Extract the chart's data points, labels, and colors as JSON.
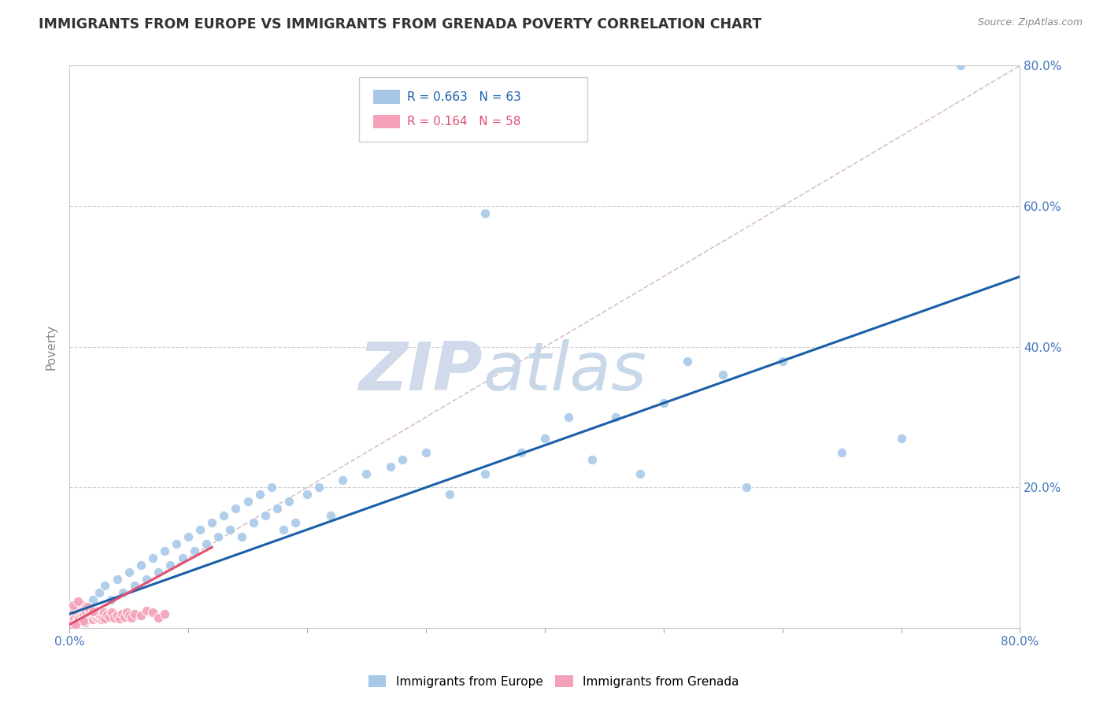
{
  "title": "IMMIGRANTS FROM EUROPE VS IMMIGRANTS FROM GRENADA POVERTY CORRELATION CHART",
  "source": "Source: ZipAtlas.com",
  "ylabel": "Poverty",
  "watermark_zip": "ZIP",
  "watermark_atlas": "atlas",
  "europe_color": "#a8c8e8",
  "grenada_color": "#f4a0b8",
  "europe_line_color": "#1a5fa8",
  "grenada_line_color": "#e05070",
  "diag_color": "#d8c0c8",
  "background_color": "#ffffff",
  "title_color": "#333333",
  "title_fontsize": 12.5,
  "watermark_color": "#d0daea",
  "axis_color": "#888888",
  "tick_color": "#4477bb",
  "europe_line_x": [
    0.0,
    0.8
  ],
  "europe_line_y": [
    0.02,
    0.5
  ],
  "grenada_line_x": [
    0.0,
    0.12
  ],
  "grenada_line_y": [
    0.005,
    0.115
  ],
  "xlim": [
    0.0,
    0.8
  ],
  "ylim": [
    0.0,
    0.8
  ],
  "europe_scatter": [
    [
      0.005,
      0.025
    ],
    [
      0.01,
      0.02
    ],
    [
      0.015,
      0.03
    ],
    [
      0.02,
      0.04
    ],
    [
      0.025,
      0.05
    ],
    [
      0.03,
      0.06
    ],
    [
      0.035,
      0.04
    ],
    [
      0.04,
      0.07
    ],
    [
      0.045,
      0.05
    ],
    [
      0.05,
      0.08
    ],
    [
      0.055,
      0.06
    ],
    [
      0.06,
      0.09
    ],
    [
      0.065,
      0.07
    ],
    [
      0.07,
      0.1
    ],
    [
      0.075,
      0.08
    ],
    [
      0.08,
      0.11
    ],
    [
      0.085,
      0.09
    ],
    [
      0.09,
      0.12
    ],
    [
      0.095,
      0.1
    ],
    [
      0.1,
      0.13
    ],
    [
      0.105,
      0.11
    ],
    [
      0.11,
      0.14
    ],
    [
      0.115,
      0.12
    ],
    [
      0.12,
      0.15
    ],
    [
      0.125,
      0.13
    ],
    [
      0.13,
      0.16
    ],
    [
      0.135,
      0.14
    ],
    [
      0.14,
      0.17
    ],
    [
      0.145,
      0.13
    ],
    [
      0.15,
      0.18
    ],
    [
      0.155,
      0.15
    ],
    [
      0.16,
      0.19
    ],
    [
      0.165,
      0.16
    ],
    [
      0.17,
      0.2
    ],
    [
      0.175,
      0.17
    ],
    [
      0.18,
      0.14
    ],
    [
      0.185,
      0.18
    ],
    [
      0.19,
      0.15
    ],
    [
      0.2,
      0.19
    ],
    [
      0.21,
      0.2
    ],
    [
      0.22,
      0.16
    ],
    [
      0.23,
      0.21
    ],
    [
      0.25,
      0.22
    ],
    [
      0.27,
      0.23
    ],
    [
      0.28,
      0.24
    ],
    [
      0.3,
      0.25
    ],
    [
      0.32,
      0.19
    ],
    [
      0.35,
      0.22
    ],
    [
      0.38,
      0.25
    ],
    [
      0.4,
      0.27
    ],
    [
      0.42,
      0.3
    ],
    [
      0.44,
      0.24
    ],
    [
      0.46,
      0.3
    ],
    [
      0.48,
      0.22
    ],
    [
      0.5,
      0.32
    ],
    [
      0.52,
      0.38
    ],
    [
      0.55,
      0.36
    ],
    [
      0.57,
      0.2
    ],
    [
      0.6,
      0.38
    ],
    [
      0.65,
      0.25
    ],
    [
      0.7,
      0.27
    ],
    [
      0.75,
      0.8
    ],
    [
      0.35,
      0.59
    ]
  ],
  "grenada_scatter": [
    [
      0.002,
      0.005
    ],
    [
      0.003,
      0.01
    ],
    [
      0.004,
      0.015
    ],
    [
      0.005,
      0.02
    ],
    [
      0.006,
      0.008
    ],
    [
      0.007,
      0.01
    ],
    [
      0.008,
      0.015
    ],
    [
      0.009,
      0.02
    ],
    [
      0.01,
      0.025
    ],
    [
      0.011,
      0.012
    ],
    [
      0.012,
      0.018
    ],
    [
      0.013,
      0.008
    ],
    [
      0.014,
      0.022
    ],
    [
      0.015,
      0.012
    ],
    [
      0.016,
      0.018
    ],
    [
      0.017,
      0.025
    ],
    [
      0.018,
      0.015
    ],
    [
      0.019,
      0.02
    ],
    [
      0.02,
      0.012
    ],
    [
      0.021,
      0.018
    ],
    [
      0.022,
      0.025
    ],
    [
      0.023,
      0.015
    ],
    [
      0.024,
      0.02
    ],
    [
      0.025,
      0.013
    ],
    [
      0.026,
      0.018
    ],
    [
      0.027,
      0.012
    ],
    [
      0.028,
      0.016
    ],
    [
      0.029,
      0.022
    ],
    [
      0.03,
      0.014
    ],
    [
      0.032,
      0.019
    ],
    [
      0.034,
      0.016
    ],
    [
      0.036,
      0.022
    ],
    [
      0.038,
      0.015
    ],
    [
      0.04,
      0.018
    ],
    [
      0.042,
      0.013
    ],
    [
      0.044,
      0.02
    ],
    [
      0.046,
      0.016
    ],
    [
      0.048,
      0.022
    ],
    [
      0.05,
      0.018
    ],
    [
      0.052,
      0.015
    ],
    [
      0.055,
      0.02
    ],
    [
      0.06,
      0.018
    ],
    [
      0.065,
      0.025
    ],
    [
      0.07,
      0.022
    ],
    [
      0.075,
      0.015
    ],
    [
      0.08,
      0.02
    ],
    [
      0.009,
      0.035
    ],
    [
      0.008,
      0.03
    ],
    [
      0.006,
      0.028
    ],
    [
      0.005,
      0.032
    ],
    [
      0.004,
      0.026
    ],
    [
      0.003,
      0.033
    ],
    [
      0.01,
      0.01
    ],
    [
      0.007,
      0.038
    ],
    [
      0.012,
      0.01
    ],
    [
      0.015,
      0.03
    ],
    [
      0.02,
      0.024
    ],
    [
      0.005,
      0.005
    ]
  ]
}
